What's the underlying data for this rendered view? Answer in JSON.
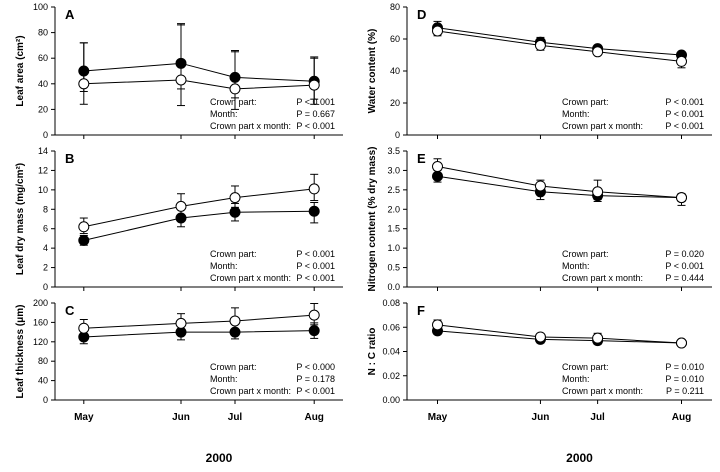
{
  "colors": {
    "axis": "#000000",
    "open_marker_fill": "#ffffff",
    "closed_marker_fill": "#000000"
  },
  "x_categories": [
    "May",
    "Jun",
    "Jul",
    "Aug"
  ],
  "year_label": "2000",
  "series_legend": [
    {
      "name": "open circles",
      "fill": "open"
    },
    {
      "name": "filled circles",
      "fill": "filled"
    }
  ],
  "chart_data": [
    {
      "panel": "A",
      "type": "line",
      "ylabel": "Leaf area  (cm²)",
      "xlim": [
        0,
        4
      ],
      "ylim": [
        0,
        100
      ],
      "yticks": [
        0,
        20,
        40,
        60,
        80,
        100
      ],
      "x": [
        0.4,
        1.75,
        2.5,
        3.6
      ],
      "series": [
        {
          "name": "open",
          "values": [
            40,
            43,
            36,
            39
          ],
          "err_up": [
            32,
            44,
            30,
            22
          ],
          "err_down": [
            16,
            20,
            16,
            15
          ]
        },
        {
          "name": "filled",
          "values": [
            50,
            56,
            45,
            42
          ],
          "err_up": [
            22,
            30,
            20,
            18
          ],
          "err_down": [
            16,
            20,
            16,
            14
          ]
        }
      ],
      "stats": [
        {
          "label": "Crown  part:",
          "value": "P < 0.001"
        },
        {
          "label": "Month:",
          "value": "P = 0.667"
        },
        {
          "label": "Crown part x month:",
          "value": "P < 0.001"
        }
      ]
    },
    {
      "panel": "B",
      "type": "line",
      "ylabel": "Leaf dry mass (mg/cm²)",
      "xlim": [
        0,
        4
      ],
      "ylim": [
        0,
        14
      ],
      "yticks": [
        0,
        2,
        4,
        6,
        8,
        10,
        12,
        14
      ],
      "x": [
        0.4,
        1.75,
        2.5,
        3.6
      ],
      "series": [
        {
          "name": "open",
          "values": [
            6.2,
            8.3,
            9.2,
            10.1
          ],
          "err_up": [
            0.9,
            1.3,
            1.2,
            1.5
          ],
          "err_down": [
            0.7,
            1.1,
            1.0,
            1.2
          ]
        },
        {
          "name": "filled",
          "values": [
            4.8,
            7.1,
            7.7,
            7.8
          ],
          "err_up": [
            0.5,
            1.0,
            0.9,
            0.9
          ],
          "err_down": [
            0.5,
            0.9,
            0.9,
            1.2
          ]
        }
      ],
      "stats": [
        {
          "label": "Crown part:",
          "value": "P < 0.001"
        },
        {
          "label": "Month:",
          "value": "P < 0.001"
        },
        {
          "label": "Crown part x month:",
          "value": "P < 0.001"
        }
      ]
    },
    {
      "panel": "C",
      "type": "line",
      "ylabel": "Leaf thickness  (μm)",
      "xlim": [
        0,
        4
      ],
      "ylim": [
        0,
        200
      ],
      "yticks": [
        0,
        40,
        80,
        120,
        160,
        200
      ],
      "x": [
        0.4,
        1.75,
        2.5,
        3.6
      ],
      "series": [
        {
          "name": "open",
          "values": [
            148,
            158,
            163,
            175
          ],
          "err_up": [
            18,
            20,
            27,
            24
          ],
          "err_down": [
            14,
            16,
            20,
            20
          ]
        },
        {
          "name": "filled",
          "values": [
            130,
            140,
            140,
            143
          ],
          "err_up": [
            14,
            16,
            16,
            16
          ],
          "err_down": [
            14,
            16,
            14,
            16
          ]
        }
      ],
      "stats": [
        {
          "label": "Crown part:",
          "value": "P < 0.000"
        },
        {
          "label": "Month:",
          "value": "P = 0.178"
        },
        {
          "label": "Crown part x month:",
          "value": "P < 0.001"
        }
      ]
    },
    {
      "panel": "D",
      "type": "line",
      "ylabel": "Water content (%)",
      "xlim": [
        0,
        4
      ],
      "ylim": [
        0,
        80
      ],
      "yticks": [
        0,
        20,
        40,
        60,
        80
      ],
      "x": [
        0.4,
        1.75,
        2.5,
        3.6
      ],
      "series": [
        {
          "name": "open",
          "values": [
            65,
            56,
            52,
            46
          ],
          "err_up": [
            3,
            3,
            2,
            3
          ],
          "err_down": [
            3,
            3,
            2,
            4
          ]
        },
        {
          "name": "filled",
          "values": [
            67,
            58,
            54,
            50
          ],
          "err_up": [
            4,
            3,
            2,
            2
          ],
          "err_down": [
            4,
            3,
            2,
            2
          ]
        }
      ],
      "stats": [
        {
          "label": "Crown part:",
          "value": "P < 0.001"
        },
        {
          "label": "Month:",
          "value": "P < 0.001"
        },
        {
          "label": "Crown part x month:",
          "value": "P < 0.001"
        }
      ]
    },
    {
      "panel": "E",
      "type": "line",
      "ylabel": "Nitrogen content (% dry mass)",
      "xlim": [
        0,
        4
      ],
      "ylim": [
        0,
        3.5
      ],
      "yticks": [
        0.0,
        0.5,
        1.0,
        1.5,
        2.0,
        2.5,
        3.0,
        3.5
      ],
      "x": [
        0.4,
        1.75,
        2.5,
        3.6
      ],
      "series": [
        {
          "name": "open",
          "values": [
            3.1,
            2.6,
            2.45,
            2.3
          ],
          "err_up": [
            0.2,
            0.15,
            0.3,
            0.1
          ],
          "err_down": [
            0.2,
            0.15,
            0.2,
            0.1
          ]
        },
        {
          "name": "filled",
          "values": [
            2.85,
            2.45,
            2.35,
            2.3
          ],
          "err_up": [
            0.15,
            0.2,
            0.15,
            0.1
          ],
          "err_down": [
            0.15,
            0.2,
            0.15,
            0.2
          ]
        }
      ],
      "stats": [
        {
          "label": "Crown part:",
          "value": "P = 0.020"
        },
        {
          "label": "Month:",
          "value": "P < 0.001"
        },
        {
          "label": "Crown part x month:",
          "value": "P = 0.444"
        }
      ]
    },
    {
      "panel": "F",
      "type": "line",
      "ylabel": "N : C ratio",
      "xlim": [
        0,
        4
      ],
      "ylim": [
        0,
        0.08
      ],
      "yticks": [
        0,
        0.02,
        0.04,
        0.06,
        0.08
      ],
      "x": [
        0.4,
        1.75,
        2.5,
        3.6
      ],
      "series": [
        {
          "name": "open",
          "values": [
            0.062,
            0.052,
            0.051,
            0.047
          ],
          "err_up": [
            0.004,
            0.002,
            0.004,
            0.002
          ],
          "err_down": [
            0.004,
            0.002,
            0.003,
            0.002
          ]
        },
        {
          "name": "filled",
          "values": [
            0.057,
            0.05,
            0.049,
            0.047
          ],
          "err_up": [
            0.003,
            0.004,
            0.003,
            0.002
          ],
          "err_down": [
            0.003,
            0.003,
            0.003,
            0.002
          ]
        }
      ],
      "stats": [
        {
          "label": "Crown part:",
          "value": "P = 0.010"
        },
        {
          "label": "Month:",
          "value": "P = 0.010"
        },
        {
          "label": "Crown part x month:",
          "value": "P = 0.211"
        }
      ]
    }
  ]
}
